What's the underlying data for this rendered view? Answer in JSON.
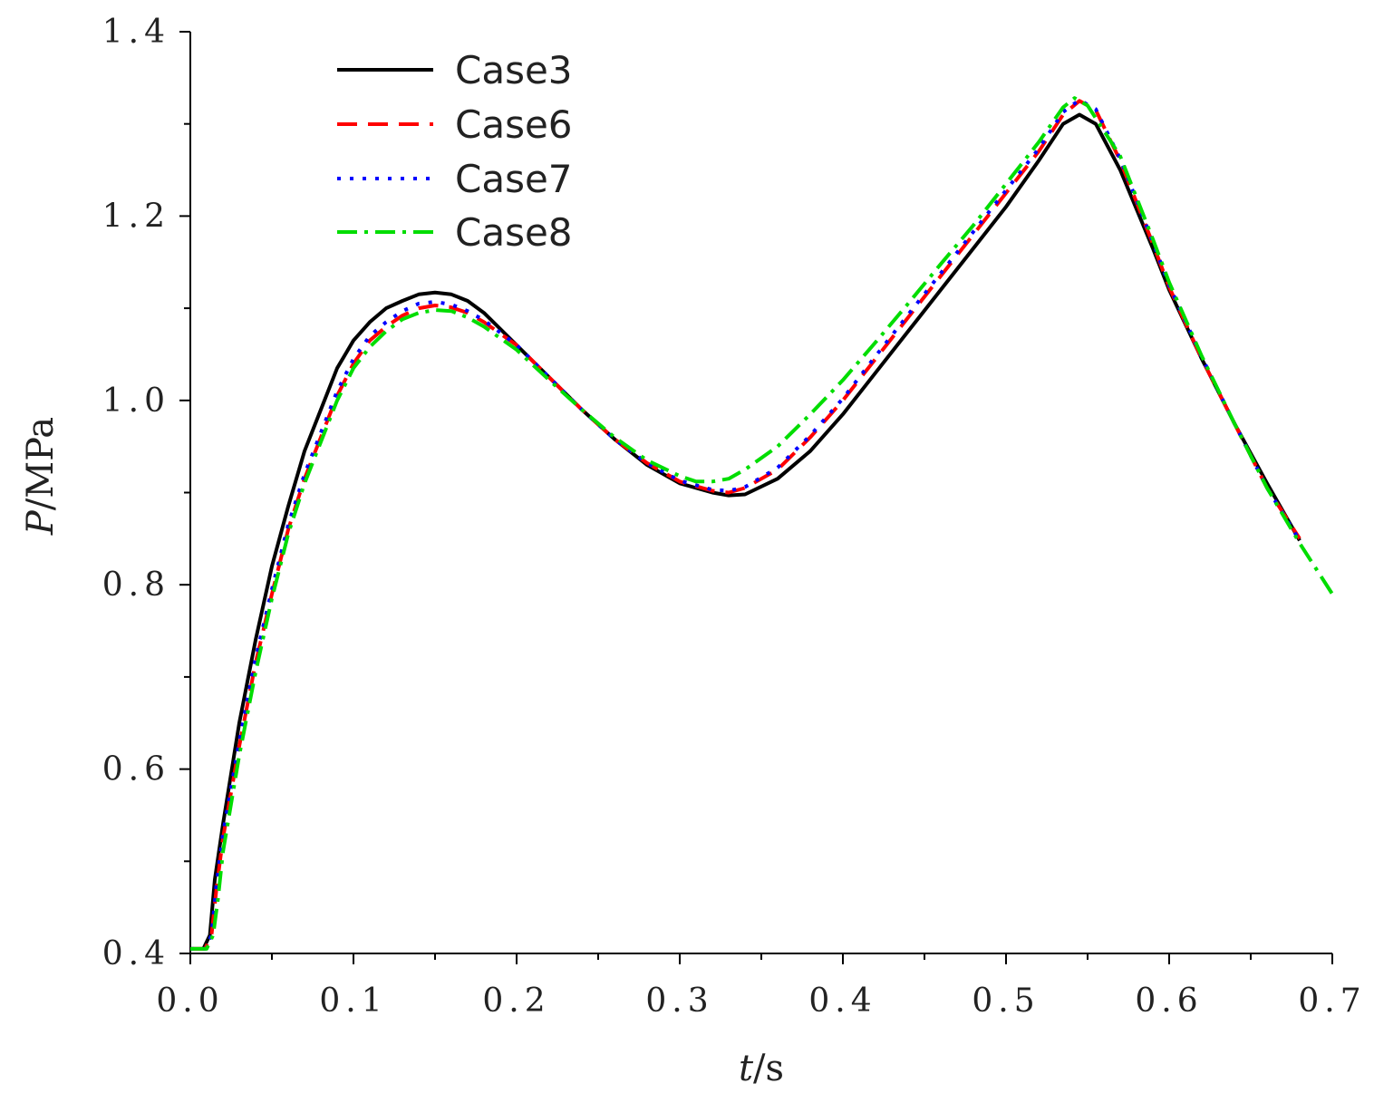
{
  "chart_data": {
    "type": "line",
    "xlabel_var": "t",
    "xlabel_unit": "/s",
    "ylabel_var": "P",
    "ylabel_unit": "/MPa",
    "xlim": [
      0,
      0.7
    ],
    "ylim": [
      0.4,
      1.4
    ],
    "x_ticks": [
      "0.0",
      "0.1",
      "0.2",
      "0.3",
      "0.4",
      "0.5",
      "0.6",
      "0.7"
    ],
    "y_ticks": [
      "0.4",
      "0.6",
      "0.8",
      "1.0",
      "1.2",
      "1.4"
    ],
    "grid": false,
    "legend_position": "top-left",
    "series": [
      {
        "name": "Case3",
        "color": "#000000",
        "dash": "solid",
        "points": [
          [
            0.0,
            0.405
          ],
          [
            0.008,
            0.405
          ],
          [
            0.012,
            0.42
          ],
          [
            0.015,
            0.48
          ],
          [
            0.02,
            0.54
          ],
          [
            0.03,
            0.65
          ],
          [
            0.04,
            0.74
          ],
          [
            0.05,
            0.82
          ],
          [
            0.06,
            0.885
          ],
          [
            0.07,
            0.945
          ],
          [
            0.08,
            0.99
          ],
          [
            0.09,
            1.035
          ],
          [
            0.1,
            1.065
          ],
          [
            0.11,
            1.085
          ],
          [
            0.12,
            1.1
          ],
          [
            0.13,
            1.108
          ],
          [
            0.14,
            1.115
          ],
          [
            0.15,
            1.117
          ],
          [
            0.16,
            1.115
          ],
          [
            0.17,
            1.108
          ],
          [
            0.18,
            1.095
          ],
          [
            0.2,
            1.06
          ],
          [
            0.22,
            1.025
          ],
          [
            0.24,
            0.99
          ],
          [
            0.26,
            0.958
          ],
          [
            0.28,
            0.93
          ],
          [
            0.3,
            0.91
          ],
          [
            0.32,
            0.9
          ],
          [
            0.33,
            0.897
          ],
          [
            0.34,
            0.898
          ],
          [
            0.36,
            0.915
          ],
          [
            0.38,
            0.945
          ],
          [
            0.4,
            0.985
          ],
          [
            0.42,
            1.03
          ],
          [
            0.44,
            1.075
          ],
          [
            0.46,
            1.12
          ],
          [
            0.48,
            1.165
          ],
          [
            0.5,
            1.21
          ],
          [
            0.52,
            1.26
          ],
          [
            0.535,
            1.3
          ],
          [
            0.545,
            1.31
          ],
          [
            0.555,
            1.3
          ],
          [
            0.57,
            1.25
          ],
          [
            0.59,
            1.165
          ],
          [
            0.6,
            1.12
          ],
          [
            0.62,
            1.045
          ],
          [
            0.64,
            0.975
          ],
          [
            0.66,
            0.91
          ],
          [
            0.68,
            0.848
          ]
        ]
      },
      {
        "name": "Case6",
        "color": "#ff0000",
        "dash": "dashed",
        "points": [
          [
            0.0,
            0.405
          ],
          [
            0.009,
            0.405
          ],
          [
            0.013,
            0.42
          ],
          [
            0.016,
            0.47
          ],
          [
            0.02,
            0.525
          ],
          [
            0.03,
            0.625
          ],
          [
            0.04,
            0.715
          ],
          [
            0.05,
            0.79
          ],
          [
            0.06,
            0.86
          ],
          [
            0.07,
            0.915
          ],
          [
            0.08,
            0.96
          ],
          [
            0.09,
            1.005
          ],
          [
            0.1,
            1.04
          ],
          [
            0.11,
            1.065
          ],
          [
            0.12,
            1.08
          ],
          [
            0.13,
            1.092
          ],
          [
            0.14,
            1.1
          ],
          [
            0.15,
            1.103
          ],
          [
            0.16,
            1.101
          ],
          [
            0.17,
            1.095
          ],
          [
            0.18,
            1.085
          ],
          [
            0.2,
            1.06
          ],
          [
            0.22,
            1.025
          ],
          [
            0.24,
            0.99
          ],
          [
            0.26,
            0.958
          ],
          [
            0.28,
            0.932
          ],
          [
            0.3,
            0.912
          ],
          [
            0.32,
            0.902
          ],
          [
            0.33,
            0.9
          ],
          [
            0.34,
            0.905
          ],
          [
            0.36,
            0.925
          ],
          [
            0.38,
            0.96
          ],
          [
            0.4,
            1.0
          ],
          [
            0.42,
            1.045
          ],
          [
            0.44,
            1.09
          ],
          [
            0.46,
            1.135
          ],
          [
            0.48,
            1.18
          ],
          [
            0.5,
            1.225
          ],
          [
            0.52,
            1.27
          ],
          [
            0.535,
            1.31
          ],
          [
            0.545,
            1.325
          ],
          [
            0.555,
            1.315
          ],
          [
            0.57,
            1.26
          ],
          [
            0.59,
            1.17
          ],
          [
            0.6,
            1.123
          ],
          [
            0.62,
            1.045
          ],
          [
            0.64,
            0.975
          ],
          [
            0.66,
            0.905
          ],
          [
            0.68,
            0.85
          ]
        ]
      },
      {
        "name": "Case7",
        "color": "#0000ff",
        "dash": "dotted",
        "points": [
          [
            0.0,
            0.405
          ],
          [
            0.009,
            0.405
          ],
          [
            0.013,
            0.42
          ],
          [
            0.016,
            0.475
          ],
          [
            0.02,
            0.53
          ],
          [
            0.03,
            0.63
          ],
          [
            0.04,
            0.72
          ],
          [
            0.05,
            0.795
          ],
          [
            0.06,
            0.865
          ],
          [
            0.07,
            0.92
          ],
          [
            0.08,
            0.965
          ],
          [
            0.09,
            1.01
          ],
          [
            0.1,
            1.045
          ],
          [
            0.11,
            1.07
          ],
          [
            0.12,
            1.085
          ],
          [
            0.13,
            1.097
          ],
          [
            0.14,
            1.105
          ],
          [
            0.15,
            1.107
          ],
          [
            0.16,
            1.104
          ],
          [
            0.17,
            1.097
          ],
          [
            0.18,
            1.087
          ],
          [
            0.2,
            1.06
          ],
          [
            0.22,
            1.025
          ],
          [
            0.24,
            0.99
          ],
          [
            0.26,
            0.958
          ],
          [
            0.28,
            0.932
          ],
          [
            0.3,
            0.913
          ],
          [
            0.32,
            0.903
          ],
          [
            0.33,
            0.902
          ],
          [
            0.34,
            0.906
          ],
          [
            0.36,
            0.927
          ],
          [
            0.38,
            0.962
          ],
          [
            0.4,
            1.002
          ],
          [
            0.42,
            1.048
          ],
          [
            0.44,
            1.093
          ],
          [
            0.46,
            1.138
          ],
          [
            0.48,
            1.183
          ],
          [
            0.5,
            1.228
          ],
          [
            0.52,
            1.273
          ],
          [
            0.535,
            1.313
          ],
          [
            0.545,
            1.326
          ],
          [
            0.555,
            1.316
          ],
          [
            0.57,
            1.262
          ],
          [
            0.59,
            1.172
          ],
          [
            0.6,
            1.125
          ],
          [
            0.62,
            1.047
          ],
          [
            0.64,
            0.975
          ],
          [
            0.66,
            0.905
          ],
          [
            0.68,
            0.848
          ]
        ]
      },
      {
        "name": "Case8",
        "color": "#00dd00",
        "dash": "dashdot",
        "points": [
          [
            0.0,
            0.405
          ],
          [
            0.01,
            0.405
          ],
          [
            0.014,
            0.42
          ],
          [
            0.017,
            0.46
          ],
          [
            0.02,
            0.51
          ],
          [
            0.03,
            0.615
          ],
          [
            0.04,
            0.705
          ],
          [
            0.05,
            0.785
          ],
          [
            0.06,
            0.855
          ],
          [
            0.07,
            0.91
          ],
          [
            0.08,
            0.955
          ],
          [
            0.09,
            1.0
          ],
          [
            0.1,
            1.035
          ],
          [
            0.11,
            1.058
          ],
          [
            0.12,
            1.075
          ],
          [
            0.13,
            1.088
          ],
          [
            0.14,
            1.095
          ],
          [
            0.15,
            1.098
          ],
          [
            0.16,
            1.097
          ],
          [
            0.17,
            1.09
          ],
          [
            0.18,
            1.08
          ],
          [
            0.2,
            1.055
          ],
          [
            0.22,
            1.022
          ],
          [
            0.24,
            0.99
          ],
          [
            0.26,
            0.96
          ],
          [
            0.28,
            0.935
          ],
          [
            0.3,
            0.918
          ],
          [
            0.31,
            0.912
          ],
          [
            0.32,
            0.912
          ],
          [
            0.33,
            0.915
          ],
          [
            0.34,
            0.925
          ],
          [
            0.36,
            0.95
          ],
          [
            0.38,
            0.985
          ],
          [
            0.4,
            1.022
          ],
          [
            0.42,
            1.063
          ],
          [
            0.44,
            1.105
          ],
          [
            0.46,
            1.148
          ],
          [
            0.48,
            1.19
          ],
          [
            0.5,
            1.235
          ],
          [
            0.52,
            1.28
          ],
          [
            0.535,
            1.318
          ],
          [
            0.542,
            1.328
          ],
          [
            0.55,
            1.32
          ],
          [
            0.57,
            1.265
          ],
          [
            0.59,
            1.175
          ],
          [
            0.6,
            1.128
          ],
          [
            0.62,
            1.048
          ],
          [
            0.64,
            0.975
          ],
          [
            0.66,
            0.905
          ],
          [
            0.68,
            0.845
          ],
          [
            0.7,
            0.79
          ]
        ]
      }
    ]
  }
}
